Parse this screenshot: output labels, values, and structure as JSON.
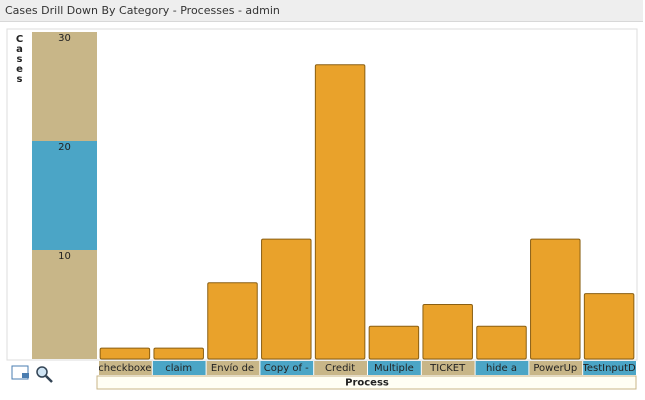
{
  "chart_data": {
    "type": "bar",
    "title": "Cases Drill Down By Category - Processes - admin",
    "y_label": "Cases",
    "x_label": "Process",
    "categories": [
      "checkboxe",
      "claim",
      "Envío de",
      "Copy of -",
      "Credit",
      "Multiple",
      "TICKET",
      "hide a",
      "PowerUp",
      "TestInputD"
    ],
    "values": [
      1,
      1,
      7,
      11,
      27,
      3,
      5,
      3,
      11,
      6
    ],
    "color": "#e9a22b",
    "band_colors": [
      "#c8b688",
      "#4ba5c6"
    ],
    "ylim": [
      0,
      30
    ],
    "yticks": [
      10,
      20,
      30
    ]
  }
}
